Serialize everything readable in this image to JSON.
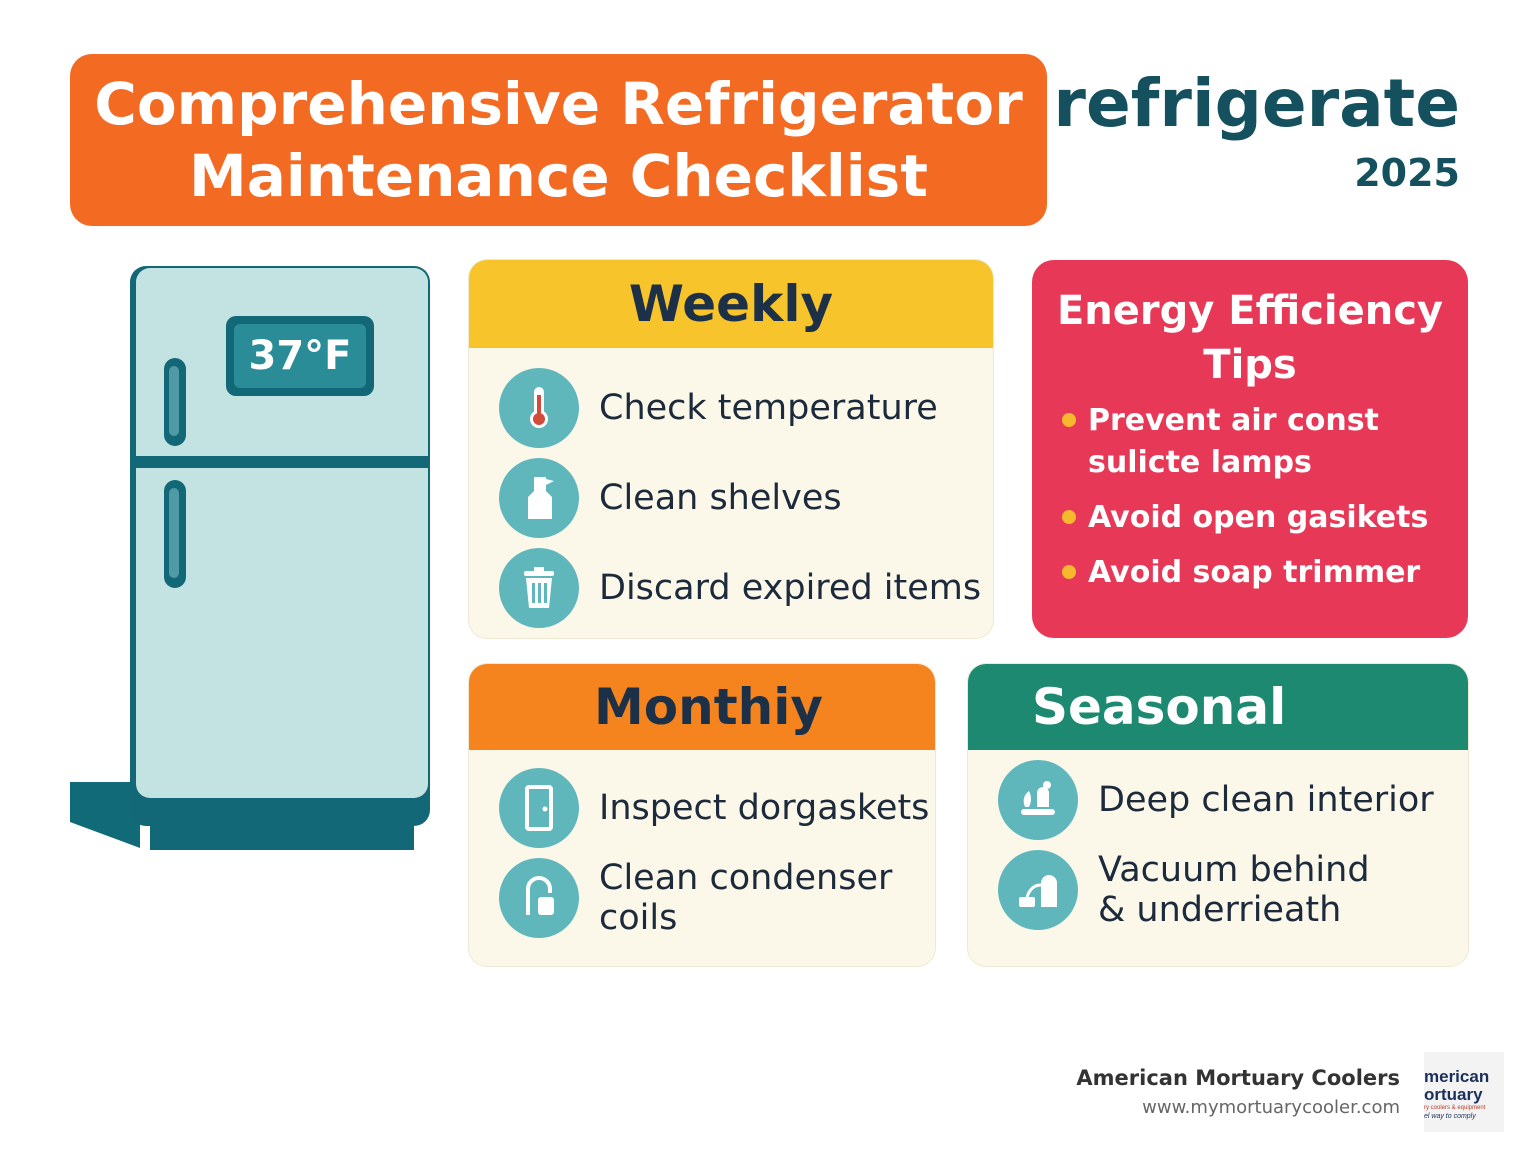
{
  "title": {
    "line1": "Comprehensive Refrigerator",
    "line2": "Maintenance Checklist"
  },
  "brand": {
    "name": "refrigerate",
    "year": "2025"
  },
  "fridge": {
    "display": "37°F"
  },
  "weekly": {
    "heading": "Weekly",
    "items": [
      {
        "label": "Check temperature",
        "icon": "thermometer-icon"
      },
      {
        "label": "Clean shelves",
        "icon": "spray-bottle-icon"
      },
      {
        "label": "Discard expired items",
        "icon": "trash-can-icon"
      }
    ]
  },
  "energy": {
    "heading": "Energy Efficiency Tips",
    "tips": [
      {
        "line1": "Prevent air const",
        "line2": "sulicte lamps"
      },
      {
        "line1": "Avoid open gasikets"
      },
      {
        "line1": "Avoid soap trimmer"
      }
    ]
  },
  "monthly": {
    "heading": "Monthiy",
    "items": [
      {
        "label": "Inspect dorgaskets",
        "icon": "door-icon"
      },
      {
        "line1": "Clean condenser",
        "line2": "coils",
        "icon": "coil-brush-icon"
      }
    ]
  },
  "seasonal": {
    "heading": "Seasonal",
    "items": [
      {
        "label": "Deep clean interior",
        "icon": "cleaning-icon"
      },
      {
        "line1": "Vacuum behind",
        "line2": "& underrieath",
        "icon": "vacuum-icon"
      }
    ]
  },
  "footer": {
    "company": "American Mortuary Coolers",
    "url": "www.mymortuarycooler.com"
  },
  "logo": {
    "line1": "merican",
    "line2": "ortuary",
    "line3": "ry coolers & equipment",
    "line4": "el way to comply"
  },
  "colors": {
    "title_bg": "#f36a23",
    "brand": "#14505d",
    "weekly_header": "#f7c52b",
    "monthly_header": "#f5841f",
    "seasonal_header": "#1d8970",
    "energy_bg": "#e73857",
    "icon_teal": "#5fb7bc",
    "card_bg": "#fbf8ea"
  }
}
